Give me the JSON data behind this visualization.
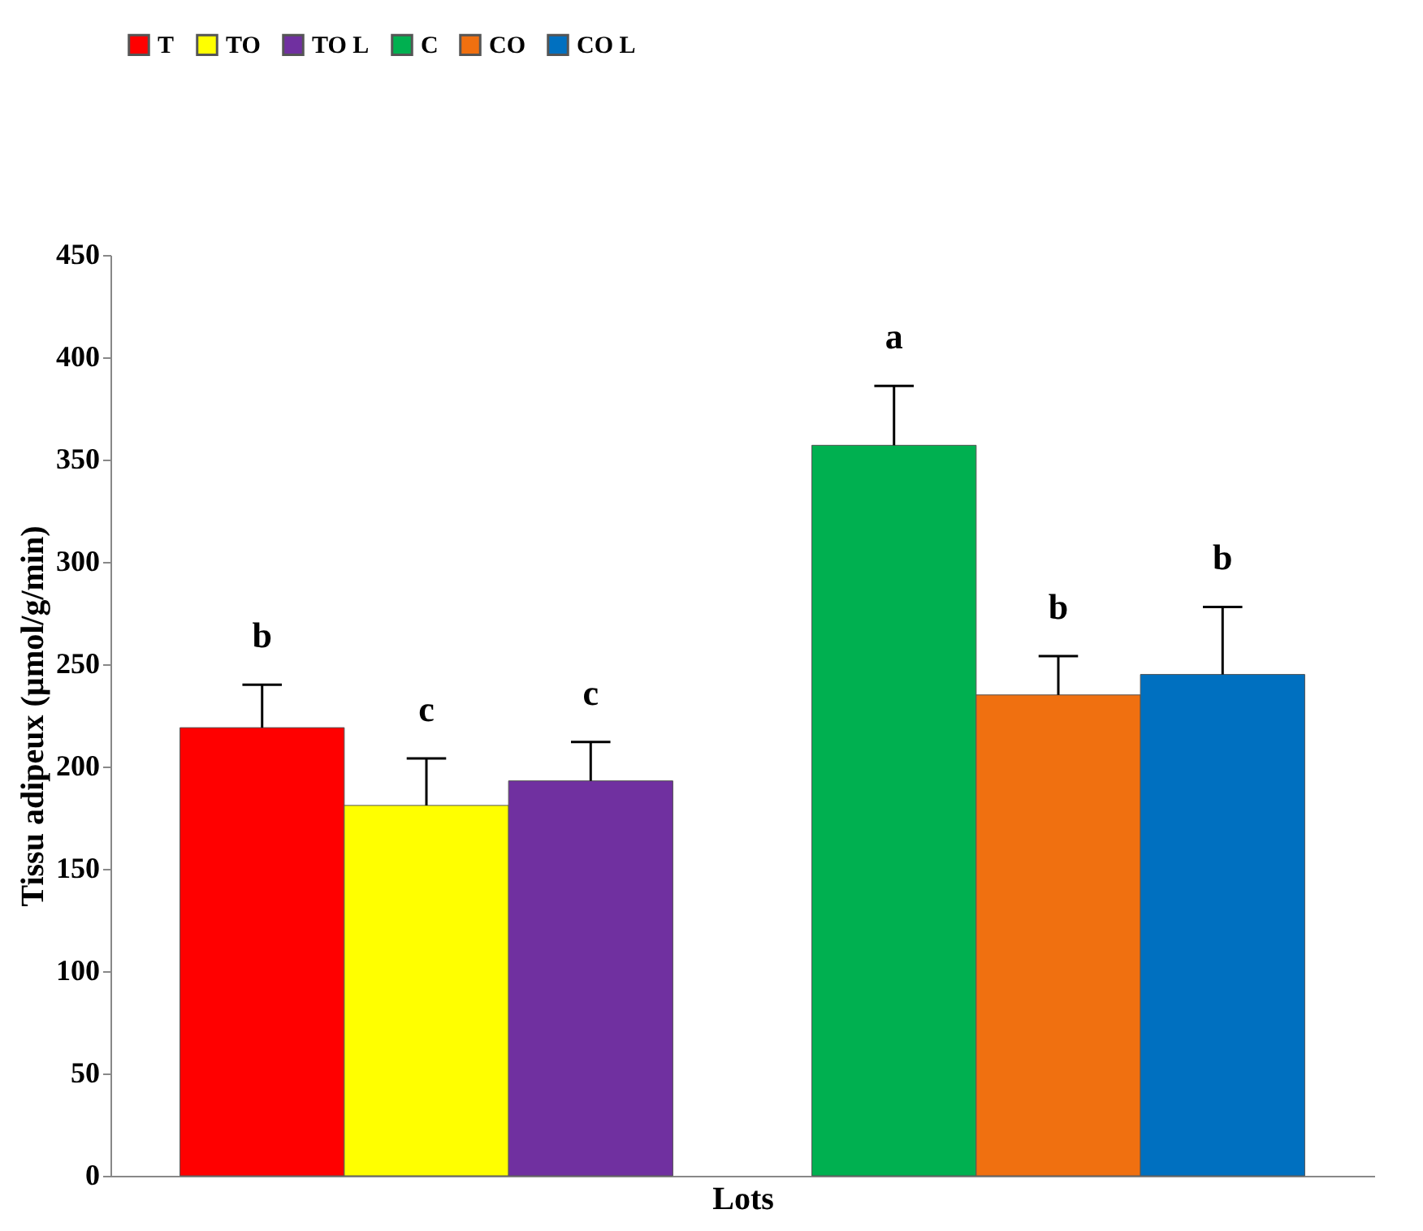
{
  "chart_data": {
    "type": "bar",
    "xlabel": "Lots",
    "ylabel": "Tissu adipeux (µmol/g/min)",
    "categories": [
      null,
      null
    ],
    "series": [
      {
        "name": "T",
        "color": "#ff0000",
        "values": [
          219,
          null
        ],
        "errors": [
          [
            219,
            240
          ],
          null
        ],
        "value_labels": [
          "b",
          null
        ]
      },
      {
        "name": "TO",
        "color": "#ffff00",
        "values": [
          181,
          null
        ],
        "errors": [
          [
            181,
            204
          ],
          null
        ],
        "value_labels": [
          "c",
          null
        ]
      },
      {
        "name": "TO L",
        "color": "#7030a0",
        "values": [
          193,
          null
        ],
        "errors": [
          [
            193,
            212
          ],
          null
        ],
        "value_labels": [
          "c",
          null
        ]
      },
      {
        "name": "C",
        "color": "#00b050",
        "values": [
          null,
          357
        ],
        "errors": [
          null,
          [
            357,
            386
          ]
        ],
        "value_labels": [
          null,
          "a"
        ]
      },
      {
        "name": "CO",
        "color": "#f07010",
        "values": [
          null,
          235
        ],
        "errors": [
          null,
          [
            235,
            254
          ]
        ],
        "value_labels": [
          null,
          "b"
        ]
      },
      {
        "name": "CO L",
        "color": "#0070c0",
        "values": [
          null,
          245
        ],
        "errors": [
          null,
          [
            245,
            278
          ]
        ],
        "value_labels": [
          null,
          "b"
        ]
      }
    ],
    "ylim": [
      0,
      450
    ],
    "yticks": [
      0,
      50,
      100,
      150,
      200,
      250,
      300,
      350,
      400,
      450
    ],
    "grid": false,
    "legend": "top"
  }
}
